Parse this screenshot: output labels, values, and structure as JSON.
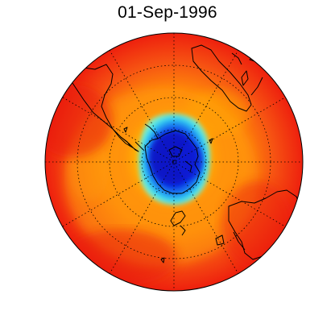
{
  "figure": {
    "title": "01-Sep-1996"
  },
  "map": {
    "projection": "polar-orthographic-south",
    "colors": {
      "outer": "#f2210e",
      "band": "#ff8a0a",
      "ring_yellow": "#ffd200",
      "ring_cyan": "#22c0f0",
      "hole_blue": "#0a1cd8",
      "coast": "#000000",
      "grid": "#000000",
      "border": "#000000"
    },
    "features": [
      "south-america-icon",
      "antarctica-icon",
      "africa-icon",
      "australia-icon",
      "new-zealand-icon"
    ]
  }
}
